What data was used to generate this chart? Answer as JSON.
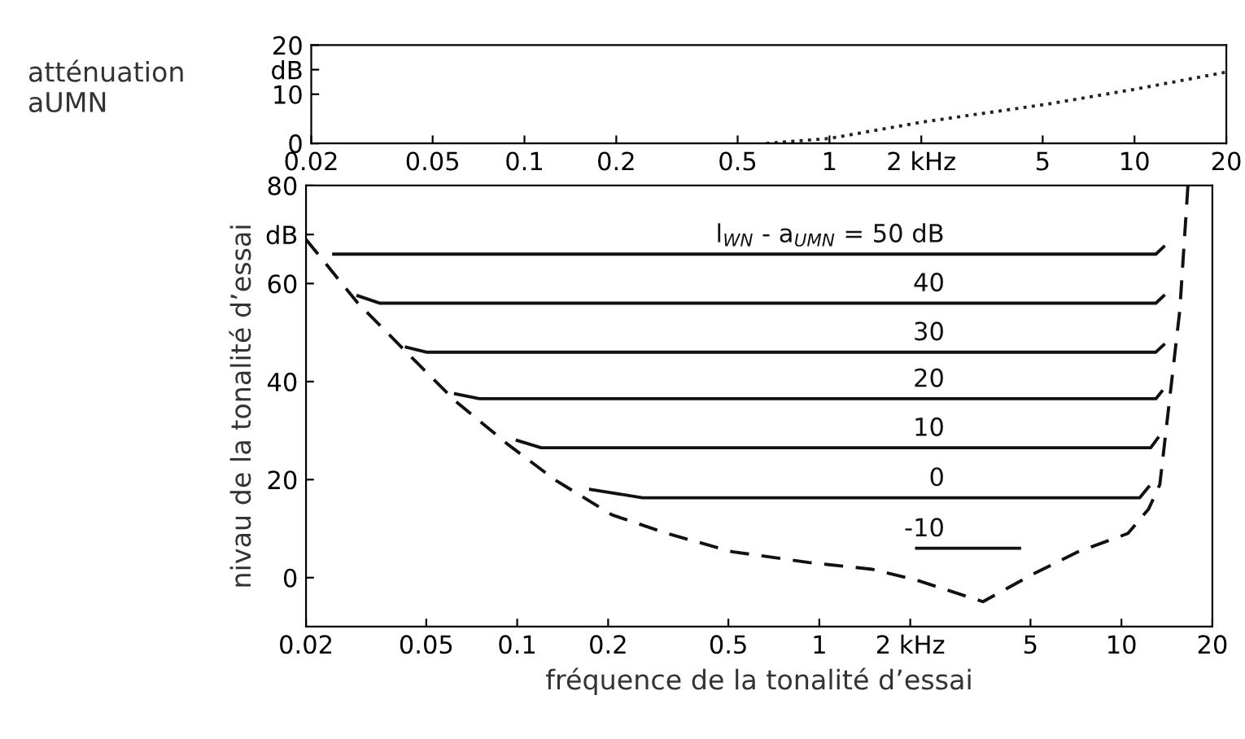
{
  "chart_data": [
    {
      "type": "line",
      "ylabel": "atténuation\naUMN",
      "xlim": [
        0.02,
        20
      ],
      "ylim": [
        0,
        20
      ],
      "log": "x",
      "grid": false,
      "xticks": [
        0.02,
        0.05,
        0.1,
        0.2,
        0.5,
        1,
        {
          "value": 2,
          "label": "2 kHz"
        },
        5,
        10,
        20
      ],
      "yticks": [
        0,
        {
          "value": 15,
          "label": "dB"
        },
        10,
        20
      ],
      "series": [
        {
          "color": "#222222",
          "line_style": "dotted",
          "x": [
            0.62,
            1,
            2,
            5.2,
            10,
            20
          ],
          "values": [
            0,
            1,
            4.3,
            8,
            11,
            14.5
          ]
        }
      ]
    },
    {
      "type": "line",
      "xlabel": "fréquence de la tonalité d’essai",
      "ylabel": "nivau de la tonalité d’essai",
      "xlim": [
        0.02,
        20
      ],
      "ylim": [
        -10,
        80
      ],
      "log": "x",
      "grid": false,
      "xticks": [
        0.02,
        0.05,
        0.1,
        0.2,
        0.5,
        1,
        {
          "value": 2,
          "label": "2 kHz"
        },
        5,
        10,
        20
      ],
      "yticks": [
        0,
        20,
        40,
        60,
        {
          "value": 70,
          "label": "dB"
        },
        80
      ],
      "series": [
        {
          "name": "l$_{WN}$ - a$_{UMN}$ = 50 dB",
          "color": "#111111",
          "line_style": "solid",
          "x": [
            0.0247,
            1,
            13,
            13.8
          ],
          "values": [
            66,
            66,
            66,
            67.5
          ]
        },
        {
          "name": "40",
          "color": "#111111",
          "line_style": "solid",
          "x": [
            0.0297,
            0.035,
            1,
            13,
            13.8
          ],
          "values": [
            57.5,
            56,
            56,
            56,
            57.5
          ]
        },
        {
          "name": "30",
          "color": "#111111",
          "line_style": "solid",
          "x": [
            0.043,
            0.05,
            1,
            13,
            13.8
          ],
          "values": [
            47,
            46,
            46,
            46,
            47.5
          ]
        },
        {
          "name": "20",
          "color": "#111111",
          "line_style": "solid",
          "x": [
            0.0625,
            0.075,
            1,
            13,
            13.6
          ],
          "values": [
            37.5,
            36.5,
            36.5,
            36.5,
            38
          ]
        },
        {
          "name": "10",
          "color": "#111111",
          "line_style": "solid",
          "x": [
            0.1,
            0.12,
            1,
            12.5,
            13.2
          ],
          "values": [
            28,
            26.5,
            26.5,
            26.5,
            28.5
          ]
        },
        {
          "name": "0",
          "color": "#111111",
          "line_style": "solid",
          "x": [
            0.175,
            0.26,
            1,
            11.5,
            12.3
          ],
          "values": [
            18,
            16.3,
            16.3,
            16.3,
            18.5
          ]
        },
        {
          "name": "-10",
          "color": "#111111",
          "line_style": "solid",
          "x": [
            2.1,
            4.6
          ],
          "values": [
            6,
            6
          ]
        },
        {
          "color": "#111111",
          "line_style": "dashed",
          "x": [
            0.02,
            0.0297,
            0.043,
            0.0625,
            0.094,
            0.133,
            0.206,
            0.314,
            0.514,
            0.923,
            1.5,
            2.1,
            3.48,
            5.2,
            7.2,
            10.5,
            12.3,
            13.4,
            15.6,
            16.6
          ],
          "values": [
            69,
            56,
            46,
            36,
            27,
            20,
            12.8,
            9,
            5.3,
            3.1,
            1.7,
            -0.5,
            -4.9,
            1,
            5.3,
            9,
            14,
            19,
            54.5,
            80
          ]
        }
      ]
    }
  ]
}
